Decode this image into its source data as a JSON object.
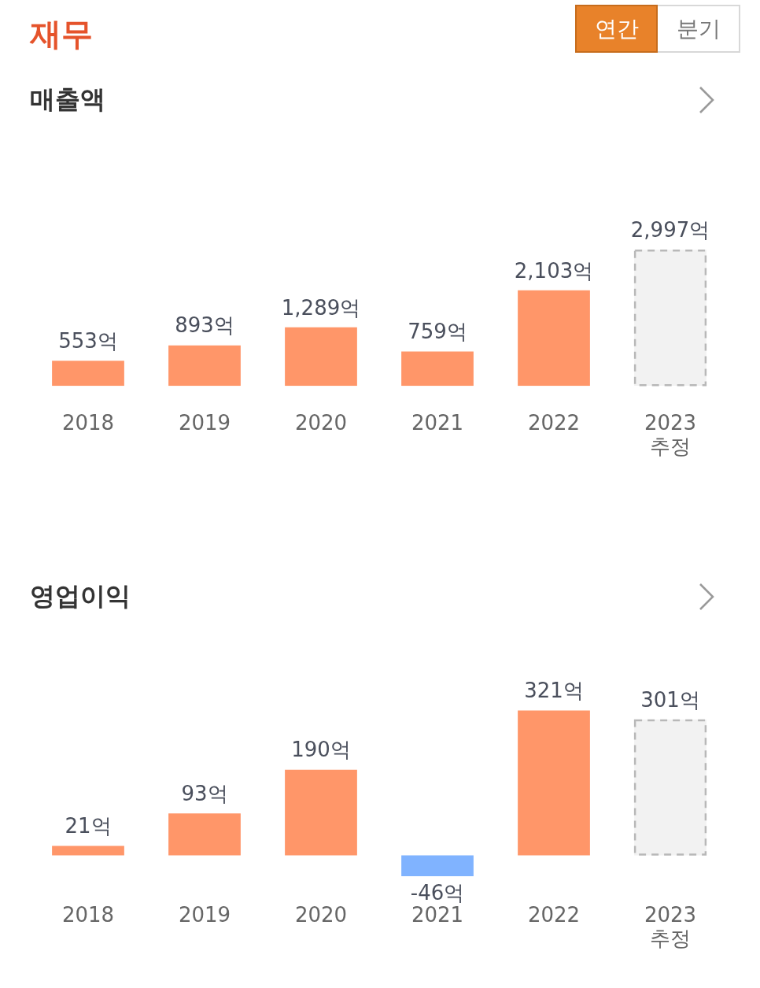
{
  "chart_data": [
    {
      "type": "bar",
      "title": "매출액",
      "annotations": [
        "재무",
        "연간",
        "분기"
      ],
      "categories": [
        "2018",
        "2019",
        "2020",
        "2021",
        "2022",
        "2023\n추정"
      ],
      "tick_labels": "x",
      "series": [
        {
          "color": "#ff9669",
          "values": [
            553,
            893,
            1289,
            759,
            2103,
            null
          ],
          "value_labels": [
            "553억",
            "893억",
            "1,289억",
            "759억",
            "2,103억",
            null
          ]
        },
        {
          "color": "#f2f2f2",
          "line_style": "dashed",
          "values": [
            null,
            null,
            null,
            null,
            null,
            2997
          ],
          "value_labels": [
            null,
            null,
            null,
            null,
            null,
            "2,997억"
          ]
        }
      ]
    },
    {
      "type": "bar",
      "title": "영업이익",
      "categories": [
        "2018",
        "2019",
        "2020",
        "2021",
        "2022",
        "2023\n추정"
      ],
      "tick_labels": "x",
      "series": [
        {
          "colors": [
            "#ff9669",
            "#ff9669",
            "#ff9669",
            "#80b3ff",
            "#ff9669",
            "#ff9669"
          ],
          "values": [
            21,
            93,
            190,
            -46,
            321,
            null
          ],
          "value_labels": [
            "21억",
            "93억",
            "190억",
            "-46억",
            "321억",
            null
          ]
        },
        {
          "color": "#f2f2f2",
          "line_style": "dashed",
          "values": [
            null,
            null,
            null,
            null,
            null,
            301
          ],
          "value_labels": [
            null,
            null,
            null,
            null,
            null,
            "301억"
          ]
        }
      ]
    }
  ]
}
